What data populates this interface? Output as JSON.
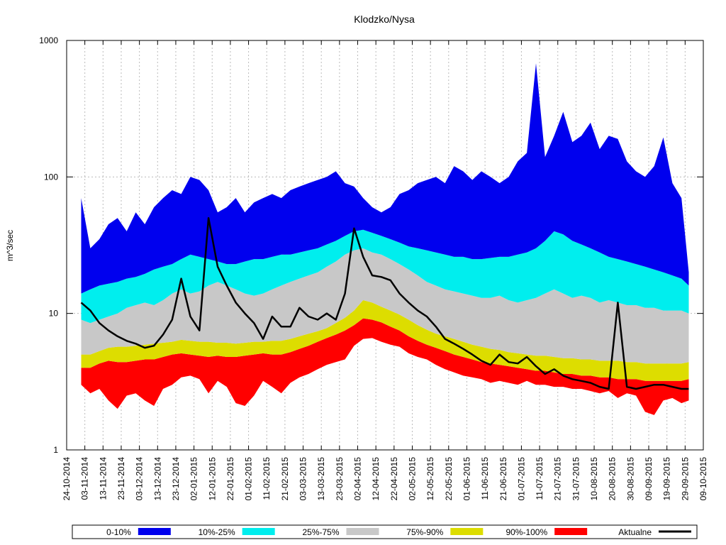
{
  "chart_data": {
    "type": "area",
    "title": "Klodzko/Nysa",
    "xlabel": "",
    "ylabel": "m^3/sec",
    "yscale": "log",
    "ylim": [
      1,
      1000
    ],
    "y_ticks": [
      "1",
      "10",
      "100",
      "1000"
    ],
    "xlim": [
      "24-10-2014",
      "09-10-2015"
    ],
    "x_ticks": [
      "24-10-2014",
      "03-11-2014",
      "13-11-2014",
      "23-11-2014",
      "03-12-2014",
      "13-12-2014",
      "23-12-2014",
      "02-01-2015",
      "12-01-2015",
      "22-01-2015",
      "01-02-2015",
      "11-02-2015",
      "21-02-2015",
      "03-03-2015",
      "13-03-2015",
      "23-03-2015",
      "02-04-2015",
      "12-04-2015",
      "22-04-2015",
      "02-05-2015",
      "12-05-2015",
      "22-05-2015",
      "01-06-2015",
      "11-06-2015",
      "21-06-2015",
      "01-07-2015",
      "11-07-2015",
      "21-07-2015",
      "31-07-2015",
      "10-08-2015",
      "20-08-2015",
      "30-08-2015",
      "09-09-2015",
      "19-09-2015",
      "29-09-2015",
      "09-10-2015"
    ],
    "grid": true,
    "legend_position": "bottom",
    "colors": {
      "p0_10": "#ff0000",
      "p10_25": "#dddd00",
      "p25_75": "#c8c8c8",
      "p75_90": "#00eeee",
      "p90_100": "#0000ee",
      "actual": "#000000",
      "grid": "#bbbbbb"
    },
    "legend": [
      {
        "label": "0-10%",
        "color": "#0000ee",
        "kind": "area"
      },
      {
        "label": "10%-25%",
        "color": "#00eeee",
        "kind": "area"
      },
      {
        "label": "25%-75%",
        "color": "#c8c8c8",
        "kind": "area"
      },
      {
        "label": "75%-90%",
        "color": "#dddd00",
        "kind": "area"
      },
      {
        "label": "90%-100%",
        "color": "#ff0000",
        "kind": "area"
      },
      {
        "label": "Aktualne",
        "color": "#000000",
        "kind": "line"
      }
    ],
    "x": [
      "01-11-2014",
      "06-11-2014",
      "11-11-2014",
      "16-11-2014",
      "21-11-2014",
      "26-11-2014",
      "01-12-2014",
      "06-12-2014",
      "11-12-2014",
      "16-12-2014",
      "21-12-2014",
      "26-12-2014",
      "31-12-2014",
      "05-01-2015",
      "10-01-2015",
      "15-01-2015",
      "20-01-2015",
      "25-01-2015",
      "30-01-2015",
      "04-02-2015",
      "09-02-2015",
      "14-02-2015",
      "19-02-2015",
      "24-02-2015",
      "01-03-2015",
      "06-03-2015",
      "11-03-2015",
      "16-03-2015",
      "21-03-2015",
      "26-03-2015",
      "31-03-2015",
      "05-04-2015",
      "10-04-2015",
      "15-04-2015",
      "20-04-2015",
      "25-04-2015",
      "30-04-2015",
      "05-05-2015",
      "10-05-2015",
      "15-05-2015",
      "20-05-2015",
      "25-05-2015",
      "30-05-2015",
      "04-06-2015",
      "09-06-2015",
      "14-06-2015",
      "19-06-2015",
      "24-06-2015",
      "29-06-2015",
      "04-07-2015",
      "09-07-2015",
      "14-07-2015",
      "19-07-2015",
      "24-07-2015",
      "29-07-2015",
      "03-08-2015",
      "08-08-2015",
      "13-08-2015",
      "18-08-2015",
      "23-08-2015",
      "28-08-2015",
      "02-09-2015",
      "07-09-2015",
      "12-09-2015",
      "17-09-2015",
      "22-09-2015",
      "27-09-2015",
      "01-10-2015"
    ],
    "series": [
      {
        "band": "min",
        "values": [
          3.0,
          2.6,
          2.8,
          2.3,
          2.0,
          2.5,
          2.6,
          2.3,
          2.1,
          2.8,
          3.0,
          3.4,
          3.5,
          3.3,
          2.6,
          3.2,
          2.9,
          2.2,
          2.1,
          2.5,
          3.2,
          2.9,
          2.6,
          3.1,
          3.4,
          3.6,
          3.9,
          4.2,
          4.4,
          4.6,
          5.8,
          6.5,
          6.6,
          6.2,
          5.9,
          5.7,
          5.1,
          4.8,
          4.6,
          4.2,
          3.9,
          3.7,
          3.5,
          3.4,
          3.3,
          3.1,
          3.2,
          3.1,
          3.0,
          3.2,
          3.0,
          3.0,
          2.9,
          2.9,
          2.8,
          2.8,
          2.7,
          2.6,
          2.7,
          2.4,
          2.6,
          2.5,
          1.9,
          1.8,
          2.3,
          2.4,
          2.2,
          2.3
        ]
      },
      {
        "band": "p10",
        "values": [
          4.0,
          4.0,
          4.3,
          4.5,
          4.4,
          4.4,
          4.5,
          4.6,
          4.6,
          4.8,
          5.0,
          5.1,
          5.0,
          4.9,
          4.8,
          4.9,
          4.8,
          4.8,
          4.9,
          5.0,
          5.1,
          5.0,
          5.0,
          5.2,
          5.5,
          5.8,
          6.2,
          6.6,
          7.0,
          7.5,
          8.2,
          9.2,
          9.0,
          8.6,
          8.0,
          7.5,
          6.8,
          6.3,
          5.9,
          5.6,
          5.3,
          5.0,
          4.8,
          4.6,
          4.4,
          4.3,
          4.2,
          4.1,
          4.0,
          3.9,
          3.8,
          3.8,
          3.7,
          3.6,
          3.6,
          3.5,
          3.5,
          3.4,
          3.4,
          3.3,
          3.3,
          3.3,
          3.2,
          3.2,
          3.2,
          3.2,
          3.2,
          3.3
        ]
      },
      {
        "band": "p25",
        "values": [
          5.0,
          5.0,
          5.3,
          5.6,
          5.7,
          5.7,
          5.8,
          5.9,
          6.0,
          6.1,
          6.2,
          6.4,
          6.3,
          6.2,
          6.2,
          6.1,
          6.1,
          6.0,
          6.1,
          6.2,
          6.2,
          6.3,
          6.3,
          6.5,
          6.8,
          7.1,
          7.4,
          7.8,
          8.5,
          9.3,
          10.5,
          12.5,
          12.0,
          11.2,
          10.5,
          9.8,
          9.0,
          8.2,
          7.6,
          7.1,
          6.8,
          6.5,
          6.2,
          5.9,
          5.7,
          5.5,
          5.4,
          5.2,
          5.1,
          5.0,
          4.9,
          4.9,
          4.8,
          4.7,
          4.7,
          4.6,
          4.6,
          4.5,
          4.5,
          4.5,
          4.4,
          4.4,
          4.3,
          4.3,
          4.3,
          4.3,
          4.3,
          4.4
        ]
      },
      {
        "band": "p75",
        "values": [
          9.0,
          8.5,
          9.0,
          9.5,
          10.0,
          11.0,
          11.5,
          12.0,
          11.5,
          12.5,
          14.0,
          15.0,
          14.0,
          14.5,
          16.0,
          17.0,
          16.0,
          15.0,
          14.0,
          13.5,
          14.0,
          15.0,
          16.0,
          17.0,
          18.0,
          19.0,
          20.0,
          22.0,
          24.0,
          27.0,
          29.0,
          30.0,
          28.0,
          27.0,
          25.0,
          23.0,
          21.0,
          19.0,
          17.0,
          16.0,
          15.0,
          14.5,
          14.0,
          13.5,
          13.0,
          13.0,
          13.5,
          12.5,
          12.0,
          12.5,
          13.0,
          14.0,
          15.0,
          14.0,
          13.0,
          13.5,
          13.0,
          12.0,
          12.5,
          12.0,
          11.5,
          11.5,
          11.0,
          11.0,
          10.5,
          10.5,
          10.5,
          10.0
        ]
      },
      {
        "band": "p90",
        "values": [
          14.0,
          15.0,
          16.0,
          16.5,
          17.0,
          18.0,
          18.5,
          19.5,
          21.0,
          22.0,
          23.0,
          25.0,
          27.0,
          26.0,
          25.0,
          24.0,
          23.0,
          23.0,
          24.0,
          25.0,
          25.0,
          26.0,
          27.0,
          27.0,
          28.0,
          29.0,
          30.0,
          32.0,
          34.0,
          37.0,
          40.0,
          41.0,
          39.0,
          37.0,
          35.0,
          33.0,
          31.0,
          30.0,
          29.0,
          28.0,
          27.0,
          26.0,
          26.0,
          25.0,
          25.0,
          25.5,
          26.0,
          26.0,
          27.0,
          28.0,
          30.0,
          34.0,
          40.0,
          38.0,
          34.0,
          32.0,
          30.0,
          28.0,
          26.0,
          25.0,
          24.0,
          23.0,
          22.0,
          21.0,
          20.0,
          19.0,
          18.0,
          16.0
        ]
      },
      {
        "band": "max",
        "values": [
          70.0,
          30.0,
          35.0,
          45.0,
          50.0,
          40.0,
          55.0,
          45.0,
          60.0,
          70.0,
          80.0,
          75.0,
          100.0,
          95.0,
          80.0,
          55.0,
          60.0,
          70.0,
          55.0,
          65.0,
          70.0,
          75.0,
          70.0,
          80.0,
          85.0,
          90.0,
          95.0,
          100.0,
          110.0,
          90.0,
          85.0,
          70.0,
          60.0,
          55.0,
          60.0,
          75.0,
          80.0,
          90.0,
          95.0,
          100.0,
          90.0,
          120.0,
          110.0,
          95.0,
          110.0,
          100.0,
          90.0,
          100.0,
          130.0,
          150.0,
          680.0,
          140.0,
          200.0,
          300.0,
          180.0,
          200.0,
          250.0,
          160.0,
          200.0,
          190.0,
          130.0,
          110.0,
          100.0,
          120.0,
          195.0,
          90.0,
          70.0,
          20.0
        ]
      },
      {
        "band": "actual",
        "values": [
          12.0,
          10.5,
          8.5,
          7.5,
          6.8,
          6.3,
          6.0,
          5.6,
          5.8,
          7.0,
          9.0,
          18.0,
          9.5,
          7.5,
          50.0,
          22.0,
          16.0,
          12.0,
          10.0,
          8.5,
          6.5,
          9.5,
          8.0,
          8.0,
          11.0,
          9.5,
          9.0,
          10.0,
          9.0,
          14.0,
          42.0,
          26.0,
          19.0,
          18.5,
          17.5,
          14.0,
          12.0,
          10.5,
          9.5,
          8.0,
          6.5,
          6.0,
          5.5,
          5.0,
          4.5,
          4.2,
          5.0,
          4.4,
          4.3,
          4.8,
          4.1,
          3.6,
          3.9,
          3.5,
          3.3,
          3.2,
          3.1,
          2.9,
          2.8,
          12.0,
          2.9,
          2.8,
          2.9,
          3.0,
          3.0,
          2.9,
          2.8,
          2.8
        ]
      }
    ]
  }
}
